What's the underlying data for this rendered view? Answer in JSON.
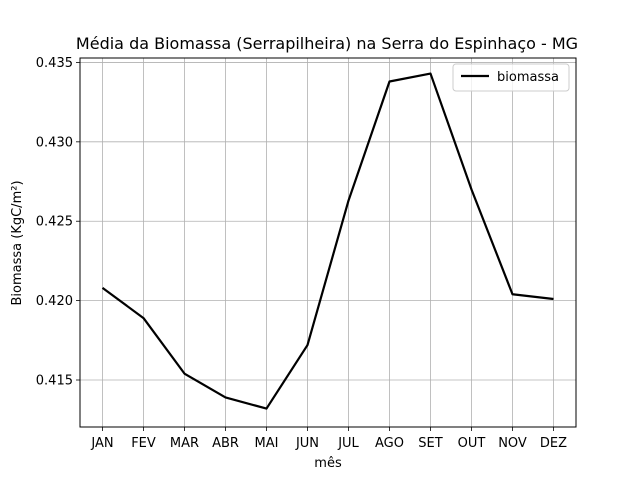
{
  "chart_data": {
    "type": "line",
    "title": "Média da Biomassa (Serrapilheira) na Serra do Espinhaço - MG",
    "xlabel": "mês",
    "ylabel": "Biomassa (KgC/m²)",
    "categories": [
      "JAN",
      "FEV",
      "MAR",
      "ABR",
      "MAI",
      "JUN",
      "JUL",
      "AGO",
      "SET",
      "OUT",
      "NOV",
      "DEZ"
    ],
    "series": [
      {
        "name": "biomassa",
        "color": "#000000",
        "values": [
          0.4208,
          0.4189,
          0.4154,
          0.4139,
          0.4132,
          0.4172,
          0.4263,
          0.4338,
          0.4343,
          0.427,
          0.4204,
          0.4201
        ]
      }
    ],
    "ylim": [
      0.41204,
      0.43528
    ],
    "yticks": [
      0.415,
      0.42,
      0.425,
      0.43,
      0.435
    ],
    "ytick_labels": [
      "0.415",
      "0.420",
      "0.425",
      "0.430",
      "0.435"
    ],
    "grid": true,
    "legend": "top-right"
  }
}
